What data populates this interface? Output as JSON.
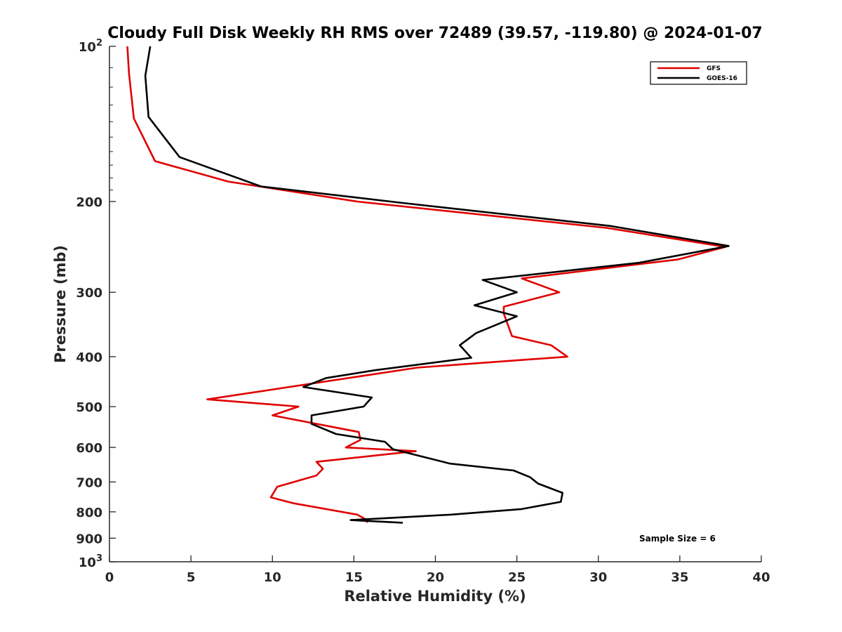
{
  "chart_data": {
    "type": "line",
    "title": "Cloudy Full Disk Weekly RH RMS over 72489 (39.57, -119.80) @ 2024-01-07",
    "xlabel": "Relative Humidity (%)",
    "ylabel": "Pressure (mb)",
    "xlim": [
      0,
      40
    ],
    "ylim": [
      100,
      1000
    ],
    "yscale": "log",
    "y_reversed": true,
    "x_ticks": [
      "0",
      "5",
      "10",
      "15",
      "20",
      "25",
      "30",
      "35",
      "40"
    ],
    "y_ticks": [
      {
        "value": 100,
        "label": "10",
        "sup": "2"
      },
      {
        "value": 200,
        "label": "200",
        "sup": ""
      },
      {
        "value": 300,
        "label": "300",
        "sup": ""
      },
      {
        "value": 400,
        "label": "400",
        "sup": ""
      },
      {
        "value": 500,
        "label": "500",
        "sup": ""
      },
      {
        "value": 600,
        "label": "600",
        "sup": ""
      },
      {
        "value": 700,
        "label": "700",
        "sup": ""
      },
      {
        "value": 800,
        "label": "800",
        "sup": ""
      },
      {
        "value": 900,
        "label": "900",
        "sup": ""
      },
      {
        "value": 1000,
        "label": "10",
        "sup": "3"
      }
    ],
    "grid": false,
    "legend_position": "top-right",
    "annotation": "Sample Size = 6",
    "series": [
      {
        "name": "GFS",
        "color": "#e00000",
        "x": [
          1.1,
          1.2,
          1.5,
          2.8,
          7.3,
          15.2,
          30.5,
          37.8,
          34.9,
          25.3,
          27.6,
          24.2,
          24.2,
          24.7,
          27.1,
          28.1,
          18.9,
          6.0,
          11.6,
          10.0,
          15.3,
          15.4,
          14.5,
          18.8,
          12.7,
          13.1,
          12.7,
          10.3,
          9.9,
          11.3,
          15.2,
          15.8,
          15.8
        ],
        "y": [
          100,
          113,
          138,
          167,
          183,
          200,
          225,
          245,
          259,
          282,
          300,
          320,
          330,
          365,
          380,
          400,
          420,
          484,
          500,
          520,
          560,
          580,
          600,
          610,
          640,
          660,
          680,
          715,
          750,
          770,
          810,
          830,
          840
        ]
      },
      {
        "name": "GOES-16",
        "color": "#000000",
        "x": [
          2.5,
          2.2,
          2.4,
          4.3,
          9.3,
          17.8,
          30.7,
          38.0,
          32.5,
          22.9,
          25.0,
          22.4,
          25.0,
          22.5,
          21.5,
          22.2,
          16.3,
          13.3,
          11.9,
          16.1,
          15.6,
          12.4,
          12.4,
          13.9,
          16.9,
          17.4,
          20.9,
          24.8,
          25.8,
          26.3,
          27.8,
          27.7,
          25.3,
          21.0,
          14.8,
          18.0
        ],
        "y": [
          100,
          114,
          137,
          164,
          187,
          201,
          223,
          244,
          263,
          284,
          300,
          318,
          334,
          360,
          380,
          402,
          425,
          440,
          458,
          480,
          500,
          520,
          540,
          565,
          585,
          605,
          645,
          665,
          685,
          705,
          735,
          765,
          790,
          810,
          830,
          840
        ]
      }
    ]
  }
}
